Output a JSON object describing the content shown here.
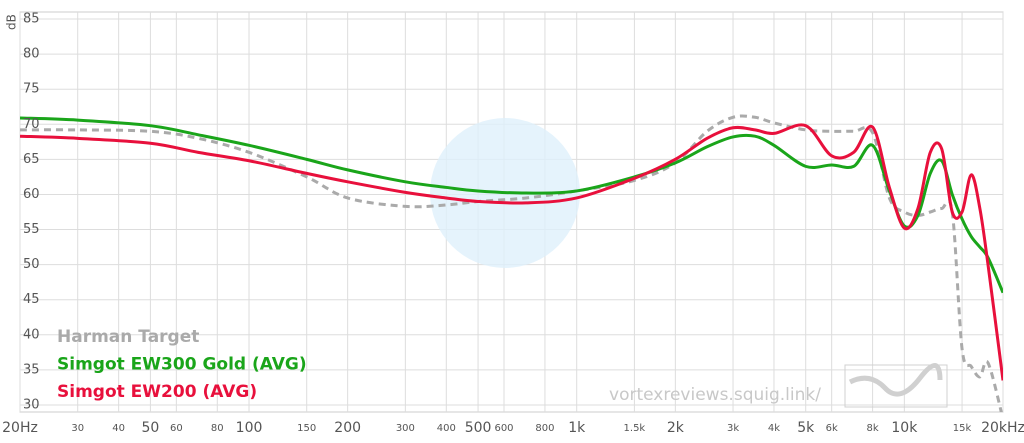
{
  "chart_data": {
    "type": "line",
    "y_label": "dB",
    "x_scale": "log",
    "xlim": [
      20,
      20000
    ],
    "ylim": [
      29,
      86
    ],
    "xticks": [
      {
        "value": 20,
        "label": "20Hz"
      },
      30,
      40,
      50,
      60,
      80,
      100,
      150,
      200,
      300,
      400,
      500,
      600,
      800,
      {
        "value": 1000,
        "label": "1k"
      },
      {
        "value": 1500,
        "label": "1.5k"
      },
      {
        "value": 2000,
        "label": "2k"
      },
      {
        "value": 3000,
        "label": "3k"
      },
      {
        "value": 4000,
        "label": "4k"
      },
      {
        "value": 5000,
        "label": "5k"
      },
      {
        "value": 6000,
        "label": "6k"
      },
      {
        "value": 8000,
        "label": "8k"
      },
      {
        "value": 10000,
        "label": "10k"
      },
      {
        "value": 15000,
        "label": "15k"
      },
      {
        "value": 20000,
        "label": "20kHz"
      }
    ],
    "yticks": [
      30,
      35,
      40,
      45,
      50,
      55,
      60,
      65,
      70,
      75,
      80,
      85
    ],
    "grid": true,
    "legend": "lower left",
    "watermark": "vortexreviews.squig.link/",
    "x": [
      20,
      30,
      50,
      70,
      100,
      150,
      200,
      300,
      400,
      500,
      700,
      1000,
      1500,
      2000,
      2500,
      3000,
      3500,
      4000,
      5000,
      6000,
      7000,
      8000,
      9000,
      10000,
      11000,
      12000,
      13000,
      14000,
      15000,
      16000,
      17000,
      18000,
      20000
    ],
    "series": [
      {
        "name": "Harman Target",
        "color": "#aaaaaa",
        "dashed": true,
        "values": [
          69.2,
          69.2,
          69,
          68,
          66,
          62.5,
          59.5,
          58.3,
          58.5,
          59,
          59.5,
          60.5,
          62,
          64.5,
          69,
          71,
          71,
          70.2,
          69.2,
          69,
          69,
          68.8,
          59.5,
          57.5,
          57,
          57.5,
          58,
          57.5,
          38,
          35.5,
          34,
          36,
          28
        ]
      },
      {
        "name": "Simgot EW300 Gold (AVG)",
        "color": "#1aa51a",
        "values": [
          70.9,
          70.6,
          69.8,
          68.5,
          67,
          65,
          63.5,
          61.8,
          61,
          60.5,
          60.2,
          60.5,
          62.5,
          64.5,
          66.8,
          68.2,
          68.3,
          67,
          64,
          64.2,
          64,
          67,
          60.5,
          55.5,
          57,
          63,
          64.8,
          60,
          56.5,
          54,
          52.5,
          51,
          46
        ]
      },
      {
        "name": "Simgot EW200 (AVG)",
        "color": "#e8103c",
        "values": [
          68.3,
          68,
          67.3,
          66,
          64.8,
          63,
          61.8,
          60.3,
          59.5,
          59,
          58.8,
          59.5,
          62.3,
          65,
          68,
          69.5,
          69.2,
          68.7,
          69.8,
          65.5,
          66,
          69.6,
          61,
          55.2,
          58,
          66,
          66.5,
          57.5,
          57.5,
          62.8,
          58,
          50,
          33.5
        ]
      }
    ]
  }
}
